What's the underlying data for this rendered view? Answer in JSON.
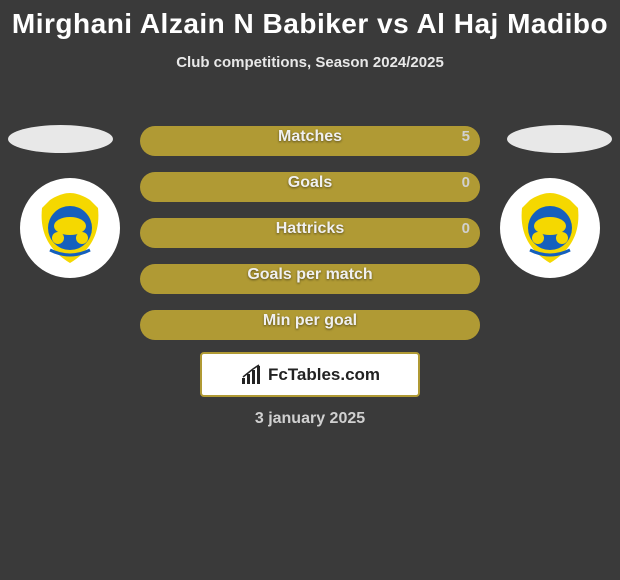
{
  "title": "Mirghani Alzain N Babiker vs Al Haj Madibo",
  "subtitle": "Club competitions, Season 2024/2025",
  "brand": "FcTables.com",
  "date": "3 january 2025",
  "colors": {
    "bar_left": "#b09a34",
    "bar_right": "#6b5a1a",
    "background": "#3a3a3a",
    "text_light": "#e8e8e8",
    "title_color": "#ffffff",
    "ellipse": "#e8e8e8",
    "logo_yellow": "#f5d800",
    "logo_blue": "#1560bd"
  },
  "stats": [
    {
      "label": "Matches",
      "left_val": "",
      "right_val": "5",
      "left_w": 340,
      "right_w": 40
    },
    {
      "label": "Goals",
      "left_val": "",
      "right_val": "0",
      "left_w": 340,
      "right_w": 40
    },
    {
      "label": "Hattricks",
      "left_val": "",
      "right_val": "0",
      "left_w": 340,
      "right_w": 40
    },
    {
      "label": "Goals per match",
      "left_val": "",
      "right_val": "",
      "left_w": 340,
      "right_w": 40
    },
    {
      "label": "Min per goal",
      "left_val": "",
      "right_val": "",
      "left_w": 340,
      "right_w": 40
    }
  ]
}
